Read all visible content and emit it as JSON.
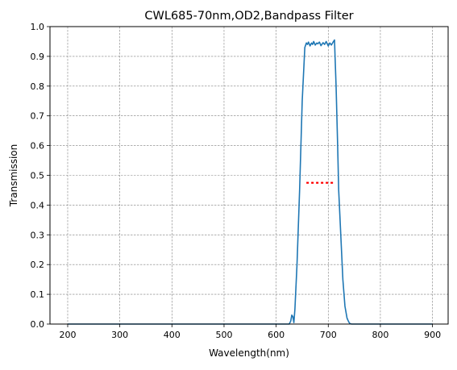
{
  "chart_data": {
    "type": "line",
    "title": "CWL685-70nm,OD2,Bandpass Filter",
    "xlabel": "Wavelength(nm)",
    "ylabel": "Transmission",
    "xlim": [
      166,
      930
    ],
    "ylim": [
      0,
      1.0
    ],
    "x_ticks": [
      200,
      300,
      400,
      500,
      600,
      700,
      800,
      900
    ],
    "y_ticks": [
      0.0,
      0.1,
      0.2,
      0.3,
      0.4,
      0.5,
      0.6,
      0.7,
      0.8,
      0.9,
      1.0
    ],
    "x_tick_labels": [
      "200",
      "300",
      "400",
      "500",
      "600",
      "700",
      "800",
      "900"
    ],
    "y_tick_labels": [
      "0.0",
      "0.1",
      "0.2",
      "0.3",
      "0.4",
      "0.5",
      "0.6",
      "0.7",
      "0.8",
      "0.9",
      "1.0"
    ],
    "grid": true,
    "colors": {
      "series": "#1f77b4",
      "marker": "#ff0000",
      "grid": "#808080"
    },
    "series": [
      {
        "x": [
          200,
          300,
          400,
          500,
          600,
          625,
          628,
          630,
          632,
          634,
          636,
          640,
          645,
          650,
          655,
          658,
          660,
          662,
          665,
          668,
          670,
          672,
          675,
          678,
          680,
          683,
          686,
          690,
          693,
          696,
          700,
          703,
          706,
          710,
          712,
          713,
          715,
          718,
          720,
          724,
          728,
          732,
          736,
          738,
          740,
          742,
          745,
          750,
          800,
          900
        ],
        "y": [
          0.0,
          0.0,
          0.0,
          0.0,
          0.0,
          0.0,
          0.01,
          0.03,
          0.025,
          0.005,
          0.05,
          0.2,
          0.45,
          0.75,
          0.93,
          0.945,
          0.94,
          0.948,
          0.935,
          0.945,
          0.94,
          0.95,
          0.938,
          0.945,
          0.942,
          0.948,
          0.936,
          0.946,
          0.94,
          0.95,
          0.935,
          0.945,
          0.938,
          0.95,
          0.955,
          0.9,
          0.8,
          0.6,
          0.45,
          0.3,
          0.15,
          0.06,
          0.02,
          0.012,
          0.005,
          0.001,
          0.0,
          0.0,
          0.0,
          0.0
        ]
      }
    ],
    "dotted_marker": {
      "x": [
        658,
        712
      ],
      "y": 0.475
    }
  }
}
